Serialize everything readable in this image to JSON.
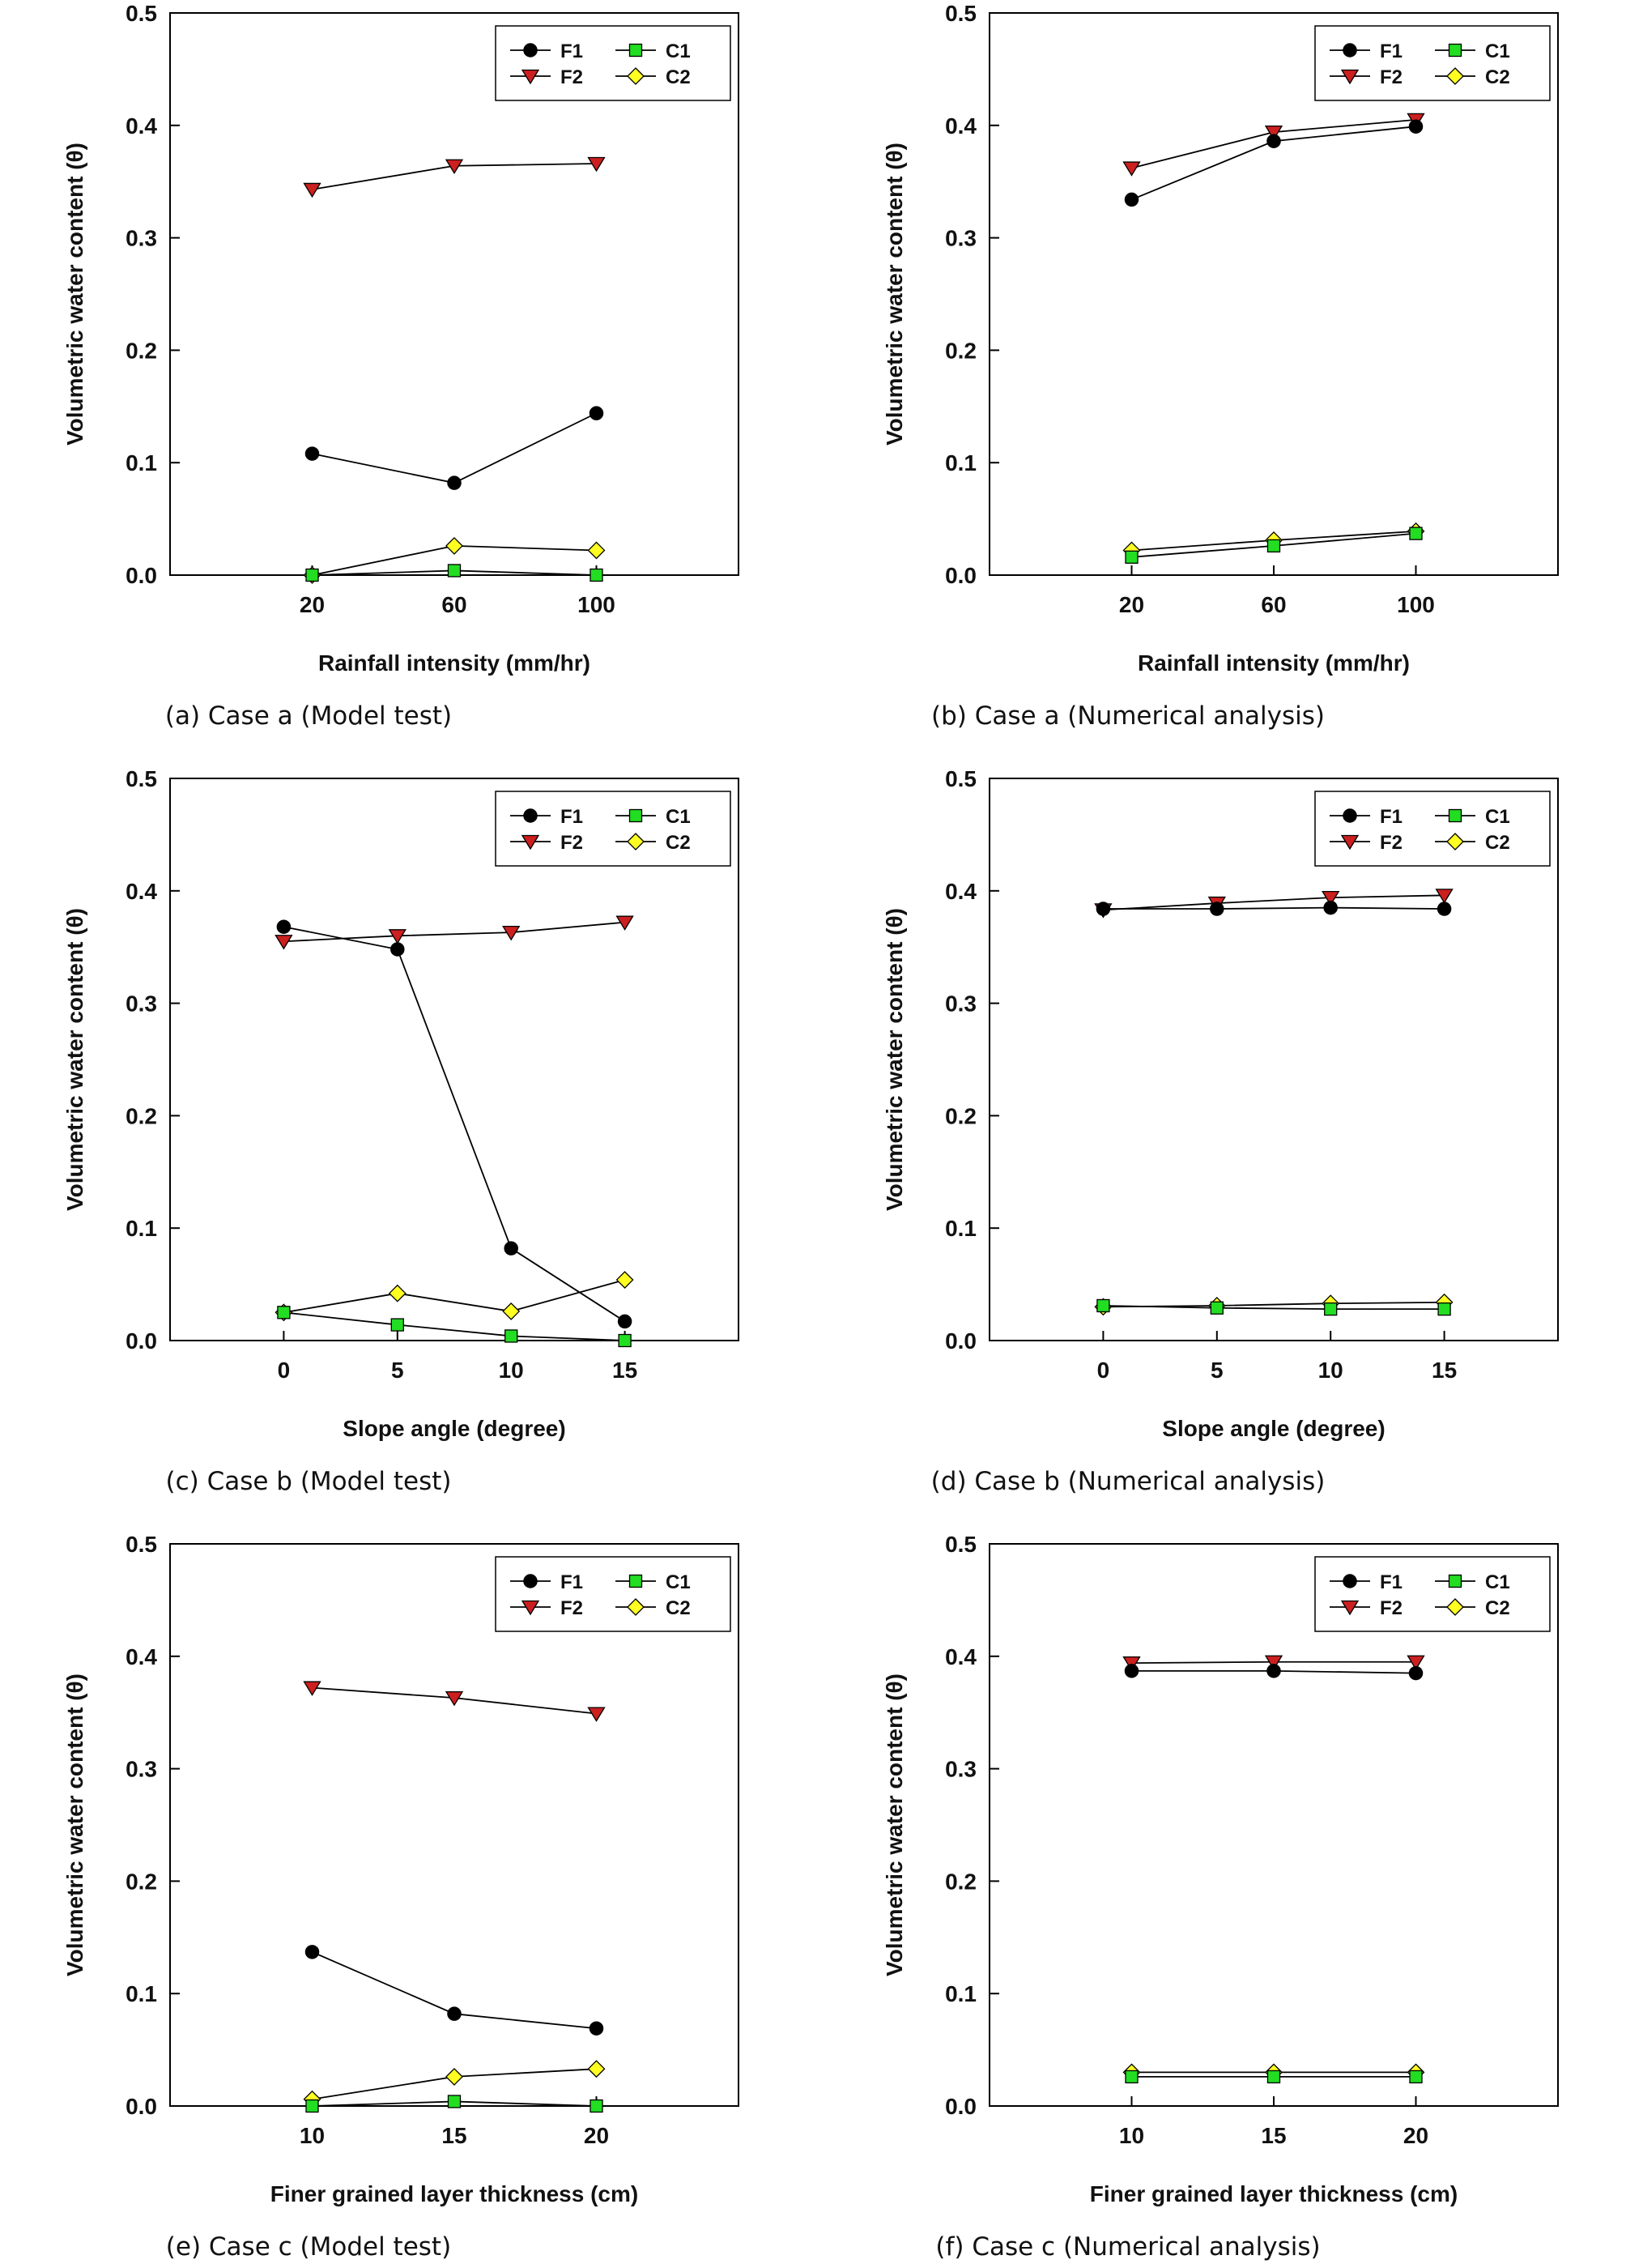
{
  "chart_data": [
    {
      "type": "line",
      "caption": "(a) Case a (Model test)",
      "xlabel": "Rainfall intensity (mm/hr)",
      "ylabel": "Volumetric water content (θ)",
      "x": [
        20,
        60,
        100
      ],
      "xlim": [
        -20,
        140
      ],
      "ylim": [
        0,
        0.5
      ],
      "y_ticks": [
        "0.0",
        "0.1",
        "0.2",
        "0.3",
        "0.4",
        "0.5"
      ],
      "x_ticks": [
        "20",
        "60",
        "100"
      ],
      "legend_position": "top-right",
      "series": [
        {
          "name": "F1",
          "marker": "circle",
          "color": "#000000",
          "values": [
            0.108,
            0.082,
            0.144
          ]
        },
        {
          "name": "F2",
          "marker": "triangle-down",
          "color": "#cc1f1f",
          "values": [
            0.343,
            0.364,
            0.366
          ]
        },
        {
          "name": "C1",
          "marker": "square",
          "color": "#22dd22",
          "values": [
            0.0,
            0.004,
            0.0
          ]
        },
        {
          "name": "C2",
          "marker": "diamond",
          "color": "#ffff22",
          "values": [
            0.0,
            0.026,
            0.022
          ]
        }
      ]
    },
    {
      "type": "line",
      "caption": "(b) Case a (Numerical analysis)",
      "xlabel": "Rainfall intensity (mm/hr)",
      "ylabel": "Volumetric water content (θ)",
      "x": [
        20,
        60,
        100
      ],
      "xlim": [
        -20,
        140
      ],
      "ylim": [
        0,
        0.5
      ],
      "y_ticks": [
        "0.0",
        "0.1",
        "0.2",
        "0.3",
        "0.4",
        "0.5"
      ],
      "x_ticks": [
        "20",
        "60",
        "100"
      ],
      "legend_position": "top-right",
      "series": [
        {
          "name": "F1",
          "marker": "circle",
          "color": "#000000",
          "values": [
            0.334,
            0.386,
            0.399
          ]
        },
        {
          "name": "F2",
          "marker": "triangle-down",
          "color": "#cc1f1f",
          "values": [
            0.362,
            0.394,
            0.405
          ]
        },
        {
          "name": "C1",
          "marker": "square",
          "color": "#22dd22",
          "values": [
            0.016,
            0.026,
            0.037
          ]
        },
        {
          "name": "C2",
          "marker": "diamond",
          "color": "#ffff22",
          "values": [
            0.022,
            0.031,
            0.039
          ]
        }
      ]
    },
    {
      "type": "line",
      "caption": "(c) Case b (Model test)",
      "xlabel": "Slope angle (degree)",
      "ylabel": "Volumetric water content (θ)",
      "x": [
        0,
        5,
        10,
        15
      ],
      "xlim": [
        -5,
        20
      ],
      "ylim": [
        0,
        0.5
      ],
      "y_ticks": [
        "0.0",
        "0.1",
        "0.2",
        "0.3",
        "0.4",
        "0.5"
      ],
      "x_ticks": [
        "0",
        "5",
        "10",
        "15"
      ],
      "legend_position": "top-right",
      "series": [
        {
          "name": "F1",
          "marker": "circle",
          "color": "#000000",
          "values": [
            0.368,
            0.348,
            0.082,
            0.017
          ]
        },
        {
          "name": "F2",
          "marker": "triangle-down",
          "color": "#cc1f1f",
          "values": [
            0.355,
            0.36,
            0.363,
            0.372
          ]
        },
        {
          "name": "C1",
          "marker": "square",
          "color": "#22dd22",
          "values": [
            0.025,
            0.014,
            0.004,
            0.0
          ]
        },
        {
          "name": "C2",
          "marker": "diamond",
          "color": "#ffff22",
          "values": [
            0.025,
            0.042,
            0.026,
            0.054
          ]
        }
      ]
    },
    {
      "type": "line",
      "caption": "(d) Case b (Numerical analysis)",
      "xlabel": "Slope angle (degree)",
      "ylabel": "Volumetric water content (θ)",
      "x": [
        0,
        5,
        10,
        15
      ],
      "xlim": [
        -5,
        20
      ],
      "ylim": [
        0,
        0.5
      ],
      "y_ticks": [
        "0.0",
        "0.1",
        "0.2",
        "0.3",
        "0.4",
        "0.5"
      ],
      "x_ticks": [
        "0",
        "5",
        "10",
        "15"
      ],
      "legend_position": "top-right",
      "series": [
        {
          "name": "F1",
          "marker": "circle",
          "color": "#000000",
          "values": [
            0.384,
            0.384,
            0.385,
            0.384
          ]
        },
        {
          "name": "F2",
          "marker": "triangle-down",
          "color": "#cc1f1f",
          "values": [
            0.383,
            0.389,
            0.394,
            0.396
          ]
        },
        {
          "name": "C1",
          "marker": "square",
          "color": "#22dd22",
          "values": [
            0.031,
            0.029,
            0.028,
            0.028
          ]
        },
        {
          "name": "C2",
          "marker": "diamond",
          "color": "#ffff22",
          "values": [
            0.03,
            0.031,
            0.033,
            0.034
          ]
        }
      ]
    },
    {
      "type": "line",
      "caption": "(e) Case c (Model test)",
      "xlabel": "Finer grained layer thickness (cm)",
      "ylabel": "Volumetric water content (θ)",
      "x": [
        10,
        15,
        20
      ],
      "xlim": [
        5,
        25
      ],
      "ylim": [
        0,
        0.5
      ],
      "y_ticks": [
        "0.0",
        "0.1",
        "0.2",
        "0.3",
        "0.4",
        "0.5"
      ],
      "x_ticks": [
        "10",
        "15",
        "20"
      ],
      "legend_position": "top-right",
      "series": [
        {
          "name": "F1",
          "marker": "circle",
          "color": "#000000",
          "values": [
            0.137,
            0.082,
            0.069
          ]
        },
        {
          "name": "F2",
          "marker": "triangle-down",
          "color": "#cc1f1f",
          "values": [
            0.372,
            0.363,
            0.349
          ]
        },
        {
          "name": "C1",
          "marker": "square",
          "color": "#22dd22",
          "values": [
            0.0,
            0.004,
            0.0
          ]
        },
        {
          "name": "C2",
          "marker": "diamond",
          "color": "#ffff22",
          "values": [
            0.006,
            0.026,
            0.033
          ]
        }
      ]
    },
    {
      "type": "line",
      "caption": "(f) Case c (Numerical analysis)",
      "xlabel": "Finer grained layer thickness (cm)",
      "ylabel": "Volumetric water content (θ)",
      "x": [
        10,
        15,
        20
      ],
      "xlim": [
        5,
        25
      ],
      "ylim": [
        0,
        0.5
      ],
      "y_ticks": [
        "0.0",
        "0.1",
        "0.2",
        "0.3",
        "0.4",
        "0.5"
      ],
      "x_ticks": [
        "10",
        "15",
        "20"
      ],
      "legend_position": "top-right",
      "series": [
        {
          "name": "F1",
          "marker": "circle",
          "color": "#000000",
          "values": [
            0.387,
            0.387,
            0.385
          ]
        },
        {
          "name": "F2",
          "marker": "triangle-down",
          "color": "#cc1f1f",
          "values": [
            0.394,
            0.395,
            0.395
          ]
        },
        {
          "name": "C1",
          "marker": "square",
          "color": "#22dd22",
          "values": [
            0.026,
            0.026,
            0.026
          ]
        },
        {
          "name": "C2",
          "marker": "diamond",
          "color": "#ffff22",
          "values": [
            0.03,
            0.03,
            0.03
          ]
        }
      ]
    }
  ]
}
